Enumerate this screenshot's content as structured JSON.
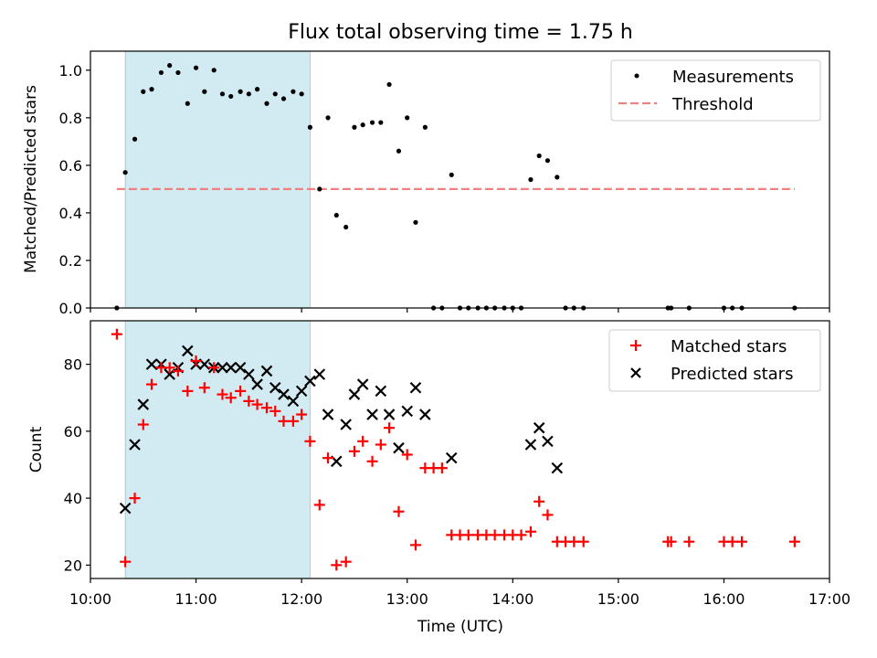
{
  "title": "Flux total observing time = 1.75 h",
  "chart_data": [
    {
      "type": "scatter",
      "ylabel": "Matched/Predicted stars",
      "xlabel": "",
      "xlim_hours": [
        10.0,
        17.0
      ],
      "ylim": [
        0.0,
        1.08
      ],
      "yticks": [
        "0.0",
        "0.2",
        "0.4",
        "0.6",
        "0.8",
        "1.0"
      ],
      "ytick_values": [
        0.0,
        0.2,
        0.4,
        0.6,
        0.8,
        1.0
      ],
      "grid": false,
      "legend_position": "top-right",
      "highlight_span_hours": [
        10.33,
        12.08
      ],
      "threshold": {
        "name": "Threshold",
        "value": 0.5,
        "x_range_hours": [
          10.25,
          16.67
        ],
        "color": "#f08080"
      },
      "series": [
        {
          "name": "Measurements",
          "color": "#000000",
          "x_hours": [
            10.25,
            10.33,
            10.42,
            10.5,
            10.58,
            10.67,
            10.75,
            10.83,
            10.92,
            11.0,
            11.08,
            11.17,
            11.25,
            11.33,
            11.42,
            11.5,
            11.58,
            11.67,
            11.75,
            11.83,
            11.92,
            12.0,
            12.08,
            12.17,
            12.25,
            12.33,
            12.42,
            12.5,
            12.58,
            12.67,
            12.75,
            12.83,
            12.92,
            13.0,
            13.08,
            13.17,
            13.25,
            13.33,
            13.42,
            13.5,
            13.58,
            13.67,
            13.75,
            13.83,
            13.92,
            14.0,
            14.08,
            14.17,
            14.25,
            14.33,
            14.42,
            14.5,
            14.58,
            14.67,
            15.47,
            15.5,
            15.67,
            16.0,
            16.08,
            16.17,
            16.67
          ],
          "y": [
            0.0,
            0.57,
            0.71,
            0.91,
            0.92,
            0.99,
            1.02,
            0.99,
            0.86,
            1.01,
            0.91,
            1.0,
            0.9,
            0.89,
            0.91,
            0.9,
            0.92,
            0.86,
            0.9,
            0.88,
            0.91,
            0.9,
            0.76,
            0.5,
            0.8,
            0.39,
            0.34,
            0.76,
            0.77,
            0.78,
            0.78,
            0.94,
            0.66,
            0.8,
            0.36,
            0.76,
            0.0,
            0.0,
            0.56,
            0.0,
            0.0,
            0.0,
            0.0,
            0.0,
            0.0,
            0.0,
            0.0,
            0.54,
            0.64,
            0.62,
            0.55,
            0.0,
            0.0,
            0.0,
            0.0,
            0.0,
            0.0,
            0.0,
            0.0,
            0.0,
            0.0
          ]
        }
      ]
    },
    {
      "type": "scatter",
      "ylabel": "Count",
      "xlabel": "Time (UTC)",
      "xlim_hours": [
        10.0,
        17.0
      ],
      "ylim": [
        16,
        93
      ],
      "yticks": [
        "20",
        "40",
        "60",
        "80"
      ],
      "ytick_values": [
        20,
        40,
        60,
        80
      ],
      "xticks": [
        "10:00",
        "11:00",
        "12:00",
        "13:00",
        "14:00",
        "15:00",
        "16:00",
        "17:00"
      ],
      "xtick_values_hours": [
        10,
        11,
        12,
        13,
        14,
        15,
        16,
        17
      ],
      "grid": false,
      "legend_position": "top-right",
      "highlight_span_hours": [
        10.33,
        12.08
      ],
      "series": [
        {
          "name": "Matched stars",
          "marker": "+",
          "color": "#ff0000",
          "x_hours": [
            10.25,
            10.33,
            10.42,
            10.5,
            10.58,
            10.67,
            10.75,
            10.83,
            10.92,
            11.0,
            11.08,
            11.17,
            11.25,
            11.33,
            11.42,
            11.5,
            11.58,
            11.67,
            11.75,
            11.83,
            11.92,
            12.0,
            12.08,
            12.17,
            12.25,
            12.33,
            12.42,
            12.5,
            12.58,
            12.67,
            12.75,
            12.83,
            12.92,
            13.0,
            13.08,
            13.17,
            13.25,
            13.33,
            13.42,
            13.5,
            13.58,
            13.67,
            13.75,
            13.83,
            13.92,
            14.0,
            14.08,
            14.17,
            14.25,
            14.33,
            14.42,
            14.5,
            14.58,
            14.67,
            15.47,
            15.5,
            15.67,
            16.0,
            16.08,
            16.17,
            16.67
          ],
          "y": [
            89,
            21,
            40,
            62,
            74,
            79,
            79,
            78,
            72,
            81,
            73,
            79,
            71,
            70,
            72,
            69,
            68,
            67,
            66,
            63,
            63,
            65,
            57,
            38,
            52,
            20,
            21,
            54,
            57,
            51,
            56,
            61,
            36,
            53,
            26,
            49,
            49,
            49,
            29,
            29,
            29,
            29,
            29,
            29,
            29,
            29,
            29,
            30,
            39,
            35,
            27,
            27,
            27,
            27,
            27,
            27,
            27,
            27,
            27,
            27,
            27
          ]
        },
        {
          "name": "Predicted stars",
          "marker": "x",
          "color": "#000000",
          "x_hours": [
            10.33,
            10.42,
            10.5,
            10.58,
            10.67,
            10.75,
            10.83,
            10.92,
            11.0,
            11.08,
            11.17,
            11.25,
            11.33,
            11.42,
            11.5,
            11.58,
            11.67,
            11.75,
            11.83,
            11.92,
            12.0,
            12.08,
            12.17,
            12.25,
            12.33,
            12.42,
            12.5,
            12.58,
            12.67,
            12.75,
            12.83,
            12.92,
            13.0,
            13.08,
            13.17,
            13.42,
            14.17,
            14.25,
            14.33,
            14.42
          ],
          "y": [
            37,
            56,
            68,
            80,
            80,
            77,
            79,
            84,
            80,
            80,
            79,
            79,
            79,
            79,
            77,
            74,
            78,
            73,
            71,
            69,
            72,
            75,
            77,
            65,
            51,
            62,
            71,
            74,
            65,
            72,
            65,
            55,
            66,
            73,
            65,
            52,
            56,
            61,
            57,
            49
          ]
        }
      ]
    }
  ]
}
